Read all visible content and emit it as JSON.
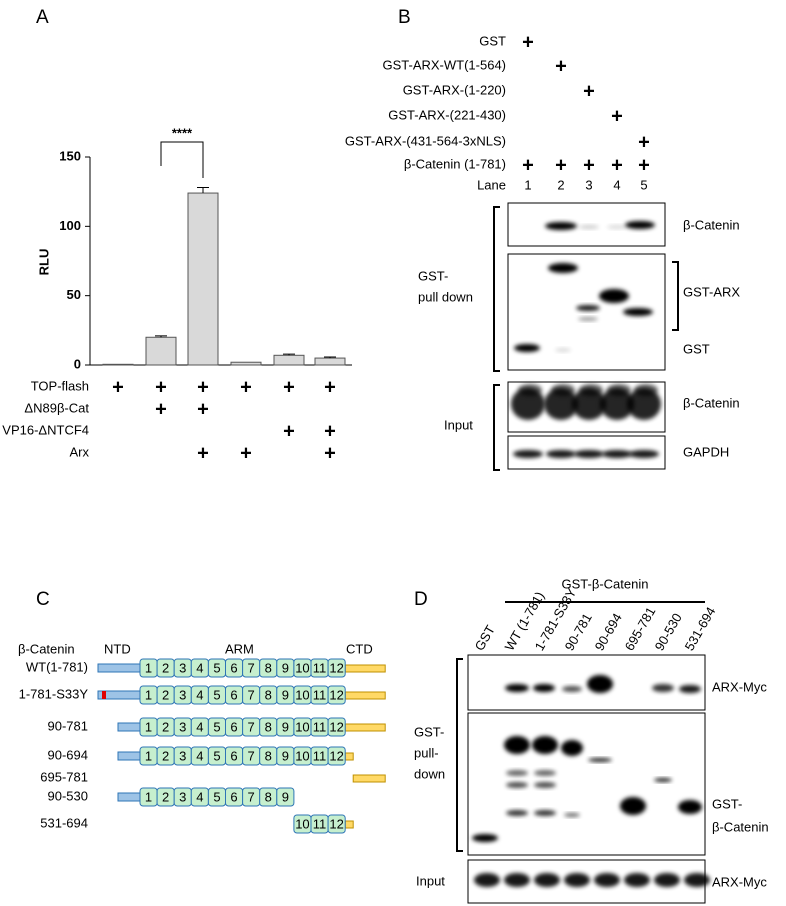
{
  "chart_data": {
    "type": "bar",
    "panel_label": "A",
    "y_label": "RLU",
    "categories": [
      null,
      null,
      null,
      null,
      null,
      null
    ],
    "values": [
      0.5,
      20,
      124,
      2,
      7,
      5
    ],
    "errors": [
      0,
      1,
      4,
      0,
      0.8,
      0.8
    ],
    "color": "#d9d9d9",
    "ylim": [
      0,
      150
    ],
    "yticks": [
      0,
      50,
      100,
      150
    ],
    "significance": "****",
    "conditions": [
      {
        "name": "TOP-flash",
        "marks": [
          "+",
          "+",
          "+",
          "+",
          "+",
          "+"
        ]
      },
      {
        "name": "ΔN89β-Cat",
        "marks": [
          null,
          "+",
          "+",
          null,
          null,
          null
        ]
      },
      {
        "name": "VP16-ΔNTCF4",
        "marks": [
          null,
          null,
          null,
          null,
          "+",
          "+"
        ]
      },
      {
        "name": "Arx",
        "marks": [
          null,
          null,
          "+",
          "+",
          null,
          "+"
        ]
      }
    ]
  },
  "panel_b": {
    "label": "B",
    "rows": [
      {
        "name": "GST",
        "marks": [
          "+",
          null,
          null,
          null,
          null
        ]
      },
      {
        "name": "GST-ARX-WT(1-564)",
        "marks": [
          null,
          "+",
          null,
          null,
          null
        ]
      },
      {
        "name": "GST-ARX-(1-220)",
        "marks": [
          null,
          null,
          "+",
          null,
          null
        ]
      },
      {
        "name": "GST-ARX-(221-430)",
        "marks": [
          null,
          null,
          null,
          "+",
          null
        ]
      },
      {
        "name": "GST-ARX-(431-564-3xNLS)",
        "marks": [
          null,
          null,
          null,
          null,
          "+"
        ]
      },
      {
        "name": "β-Catenin (1-781)",
        "marks": [
          "+",
          "+",
          "+",
          "+",
          "+"
        ]
      }
    ],
    "lane_header": "Lane",
    "lanes": [
      "1",
      "2",
      "3",
      "4",
      "5"
    ],
    "blot_labels": [
      "β-Catenin",
      "GST-ARX",
      "GST",
      "β-Catenin",
      "GAPDH"
    ],
    "pulldown_label": [
      "GST-",
      "pull down"
    ],
    "input_label": "Input"
  },
  "panel_c": {
    "label": "C",
    "header": {
      "protein": "β-Catenin",
      "ntd": "NTD",
      "arm": "ARM",
      "ctd": "CTD"
    },
    "constructs": [
      {
        "name": "WT(1-781)",
        "repeats": [
          "1",
          "2",
          "3",
          "4",
          "5",
          "6",
          "7",
          "8",
          "9",
          "10",
          "11",
          "12"
        ]
      },
      {
        "name": "1-781-S33Y",
        "repeats": [
          "1",
          "2",
          "3",
          "4",
          "5",
          "6",
          "7",
          "8",
          "9",
          "10",
          "11",
          "12"
        ]
      },
      {
        "name": "90-781",
        "repeats": [
          "1",
          "2",
          "3",
          "4",
          "5",
          "6",
          "7",
          "8",
          "9",
          "10",
          "11",
          "12"
        ]
      },
      {
        "name": "90-694",
        "repeats": [
          "1",
          "2",
          "3",
          "4",
          "5",
          "6",
          "7",
          "8",
          "9",
          "10",
          "11",
          "12"
        ]
      },
      {
        "name": "695-781",
        "repeats": []
      },
      {
        "name": "90-530",
        "repeats": [
          "1",
          "2",
          "3",
          "4",
          "5",
          "6",
          "7",
          "8",
          "9"
        ]
      },
      {
        "name": "531-694",
        "repeats": [
          "10",
          "11",
          "12"
        ]
      }
    ]
  },
  "panel_d": {
    "label": "D",
    "header": "GST-β-Catenin",
    "lanes": [
      "GST",
      "WT (1-781)",
      "1-781-S33Y",
      "90-781",
      "90-694",
      "695-781",
      "90-530",
      "531-694"
    ],
    "blot_labels": [
      "ARX-Myc",
      "GST-",
      "β-Catenin",
      "ARX-Myc"
    ],
    "pulldown_label": [
      "GST-",
      "pull-",
      "down"
    ],
    "input_label": "Input"
  }
}
